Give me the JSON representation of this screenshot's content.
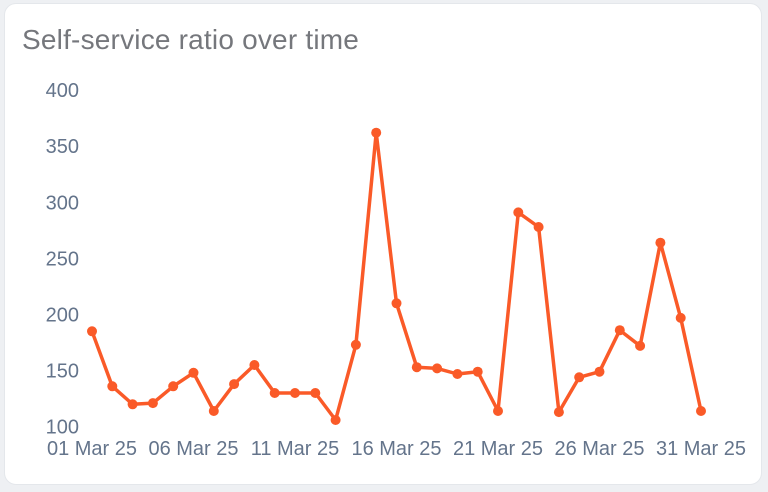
{
  "card": {
    "title": "Self-service ratio over time"
  },
  "colors": {
    "line": "#fa5a28",
    "marker": "#fa5a28",
    "tick_text": "#64748b",
    "title_text": "#75777c",
    "card_bg": "#ffffff",
    "card_border": "#e4e7eb",
    "page_bg": "#eef0f3"
  },
  "chart_data": {
    "type": "line",
    "title": "Self-service ratio over time",
    "x": [
      "01 Mar 25",
      "02 Mar 25",
      "03 Mar 25",
      "04 Mar 25",
      "05 Mar 25",
      "06 Mar 25",
      "07 Mar 25",
      "08 Mar 25",
      "09 Mar 25",
      "10 Mar 25",
      "11 Mar 25",
      "12 Mar 25",
      "13 Mar 25",
      "14 Mar 25",
      "15 Mar 25",
      "16 Mar 25",
      "17 Mar 25",
      "18 Mar 25",
      "19 Mar 25",
      "20 Mar 25",
      "21 Mar 25",
      "22 Mar 25",
      "23 Mar 25",
      "24 Mar 25",
      "25 Mar 25",
      "26 Mar 25",
      "27 Mar 25",
      "28 Mar 25",
      "29 Mar 25",
      "30 Mar 25",
      "31 Mar 25"
    ],
    "values": [
      185,
      136,
      120,
      121,
      136,
      148,
      114,
      138,
      155,
      130,
      130,
      130,
      106,
      173,
      362,
      210,
      153,
      152,
      147,
      149,
      114,
      291,
      278,
      113,
      144,
      149,
      186,
      172,
      264,
      197,
      114
    ],
    "xlabel": "",
    "ylabel": "",
    "xtick_labels": [
      "01 Mar 25",
      "06 Mar 25",
      "11 Mar 25",
      "16 Mar 25",
      "21 Mar 25",
      "26 Mar 25",
      "31 Mar 25"
    ],
    "xtick_indices": [
      0,
      5,
      10,
      15,
      20,
      25,
      30
    ],
    "ytick_labels": [
      400,
      350,
      300,
      250,
      200,
      150,
      100
    ],
    "ylim": [
      100,
      400
    ],
    "grid": false,
    "legend": false,
    "line_color": "#fa5a28",
    "marker": "circle"
  }
}
